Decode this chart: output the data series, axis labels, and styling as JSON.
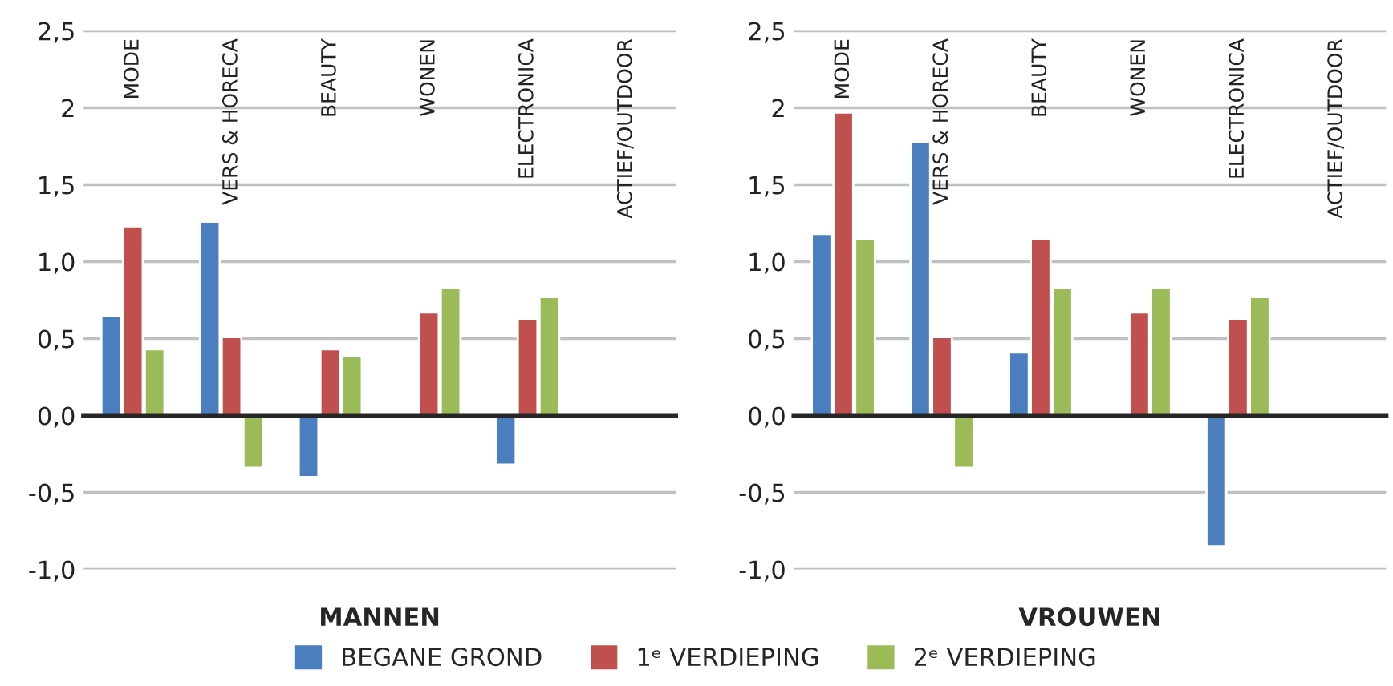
{
  "chart_data": [
    {
      "type": "bar",
      "xlabel": "MANNEN",
      "categories": [
        "MODE",
        "VERS & HORECA",
        "BEAUTY",
        "WONEN",
        "ELECTRONICA",
        "ACTIEF/OUTDOOR"
      ],
      "series": [
        {
          "color": "#4a7ebf",
          "values": [
            0.65,
            1.26,
            -0.4,
            null,
            -0.32,
            null
          ]
        },
        {
          "color": "#c0504d",
          "values": [
            1.23,
            0.51,
            0.43,
            0.67,
            0.63,
            null
          ]
        },
        {
          "color": "#9bbb59",
          "values": [
            0.43,
            -0.34,
            0.39,
            0.83,
            0.77,
            null
          ]
        }
      ],
      "ylim": [
        -1.0,
        2.5
      ],
      "yticks": [
        {
          "value": 2.5,
          "label": "2,5"
        },
        {
          "value": 2,
          "label": "2"
        },
        {
          "value": 1.5,
          "label": "1,5"
        },
        {
          "value": 1.0,
          "label": "1,0"
        },
        {
          "value": 0.5,
          "label": "0,5"
        },
        {
          "value": 0,
          "label": "0,0"
        },
        {
          "value": -0.5,
          "label": "-0,5"
        },
        {
          "value": -1.0,
          "label": "-1,0"
        }
      ],
      "grid": "y"
    },
    {
      "type": "bar",
      "xlabel": "VROUWEN",
      "categories": [
        "MODE",
        "VERS & HORECA",
        "BEAUTY",
        "WONEN",
        "ELECTRONICA",
        "ACTIEF/OUTDOOR"
      ],
      "series": [
        {
          "name": "BEGANE GROND",
          "color": "#4a7ebf",
          "values": [
            1.18,
            1.78,
            0.41,
            null,
            -0.85,
            null
          ]
        },
        {
          "name": "1ᵉ VERDIEPING",
          "color": "#c0504d",
          "values": [
            1.97,
            0.51,
            1.15,
            0.67,
            0.63,
            null
          ]
        },
        {
          "name": "2ᵉ VERDIEPING",
          "color": "#9bbb59",
          "values": [
            1.15,
            -0.34,
            0.83,
            0.83,
            0.77,
            null
          ]
        }
      ],
      "ylim": [
        -1.0,
        2.5
      ],
      "yticks": [
        {
          "value": 2.5,
          "label": "2,5"
        },
        {
          "value": 2,
          "label": "2"
        },
        {
          "value": 1.5,
          "label": "1,5"
        },
        {
          "value": 1.0,
          "label": "1,0"
        },
        {
          "value": 0.5,
          "label": "0,5"
        },
        {
          "value": 0,
          "label": "0,0"
        },
        {
          "value": -0.5,
          "label": "-0,5"
        },
        {
          "value": -1.0,
          "label": "-1,0"
        }
      ],
      "grid": "y",
      "legend": "bottom"
    }
  ]
}
